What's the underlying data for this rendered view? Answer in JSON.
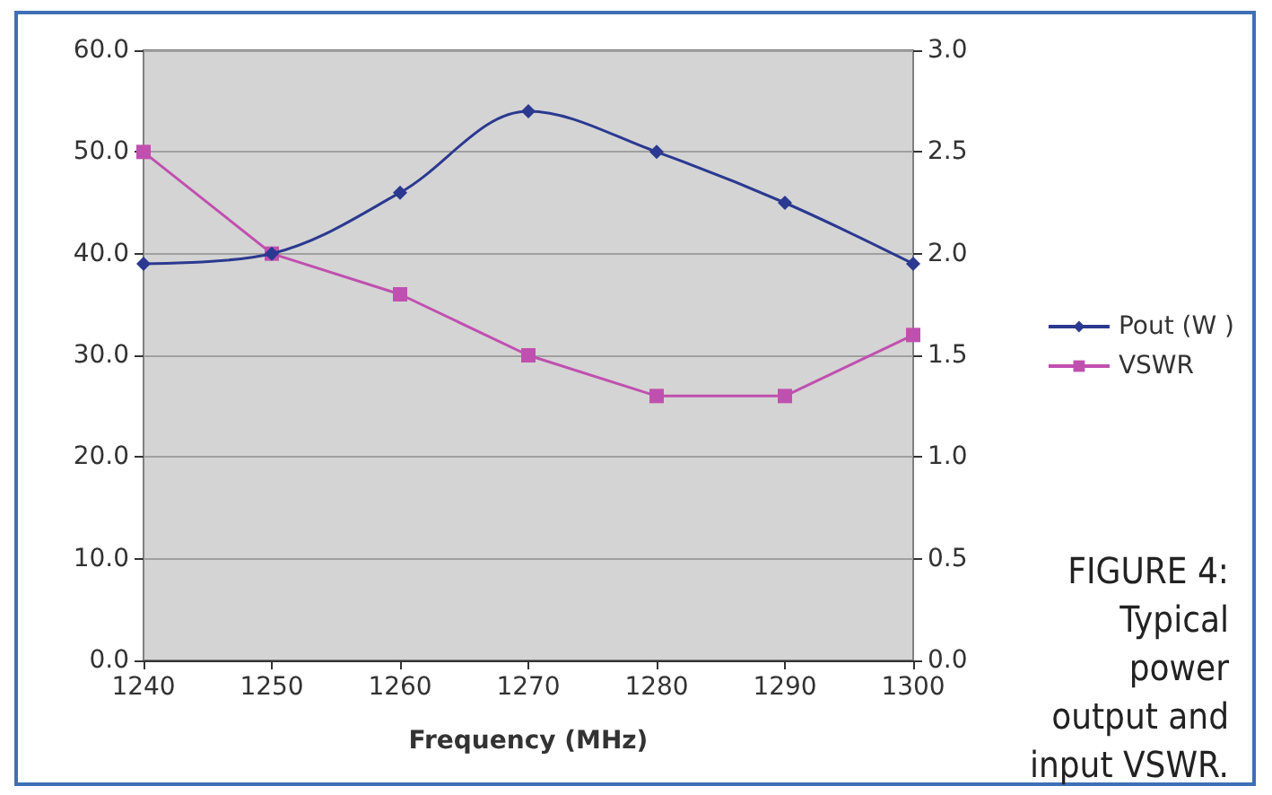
{
  "chart_data": {
    "type": "line",
    "xlabel": "Frequency (MHz)",
    "x": [
      1240,
      1250,
      1260,
      1270,
      1280,
      1290,
      1300
    ],
    "xlim": [
      1240,
      1300
    ],
    "xticks": [
      1240,
      1250,
      1260,
      1270,
      1280,
      1290,
      1300
    ],
    "ylim": [
      0,
      60
    ],
    "yticks": [
      {
        "value": 0,
        "label": "0.0"
      },
      {
        "value": 10,
        "label": "10.0"
      },
      {
        "value": 20,
        "label": "20.0"
      },
      {
        "value": 30,
        "label": "30.0"
      },
      {
        "value": 40,
        "label": "40.0"
      },
      {
        "value": 50,
        "label": "50.0"
      },
      {
        "value": 60,
        "label": "60.0"
      }
    ],
    "y2lim": [
      0,
      3
    ],
    "y2ticks": [
      {
        "value": 0,
        "label": "0.0"
      },
      {
        "value": 0.5,
        "label": "0.5"
      },
      {
        "value": 1,
        "label": "1.0"
      },
      {
        "value": 1.5,
        "label": "1.5"
      },
      {
        "value": 2,
        "label": "2.0"
      },
      {
        "value": 2.5,
        "label": "2.5"
      },
      {
        "value": 3,
        "label": "3.0"
      }
    ],
    "series": [
      {
        "name": "Pout (W )",
        "color": "#2b3990",
        "marker": "diamond",
        "values": [
          39,
          40,
          46,
          54,
          50,
          45,
          39
        ]
      },
      {
        "name": "VSWR",
        "color": "#c050b0",
        "marker": "square",
        "axis": "y2",
        "values": [
          2.5,
          2.0,
          1.8,
          1.5,
          1.3,
          1.3,
          1.6
        ]
      }
    ],
    "grid": "y",
    "legend": "right",
    "annotations": [
      "FIGURE 4:\nTypical\npower\noutput and\ninput VSWR."
    ]
  }
}
